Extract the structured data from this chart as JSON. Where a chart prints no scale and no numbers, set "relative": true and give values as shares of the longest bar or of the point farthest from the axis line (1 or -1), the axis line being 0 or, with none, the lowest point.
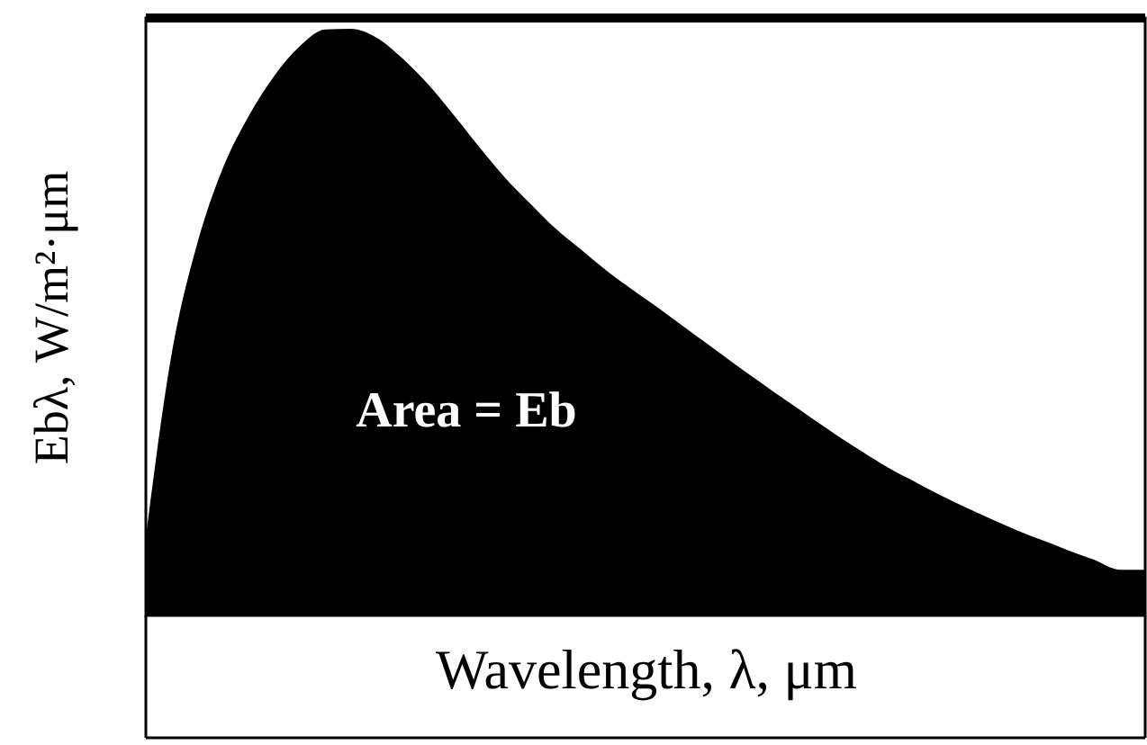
{
  "chart_data": {
    "type": "area",
    "relative": true,
    "xlabel": "Wavelength, λ, μm",
    "ylabel": "Ebλ, W/m²·μm",
    "annotations": [
      "Area = Eb"
    ],
    "categories": [
      null,
      null,
      null,
      null,
      null,
      null,
      null,
      null,
      null,
      null,
      null,
      null,
      null,
      null,
      null,
      null,
      null,
      null,
      null,
      null,
      null,
      null,
      null,
      null,
      null,
      null,
      null,
      null,
      null,
      null,
      null,
      null,
      null,
      null,
      null,
      null,
      null,
      null,
      null,
      null
    ],
    "values": [
      0.134,
      0.444,
      0.633,
      0.762,
      0.85,
      0.919,
      0.97,
      0.999,
      1.0,
      0.985,
      0.95,
      0.906,
      0.854,
      0.799,
      0.747,
      0.702,
      0.659,
      0.623,
      0.587,
      0.555,
      0.524,
      0.492,
      0.46,
      0.428,
      0.397,
      0.366,
      0.336,
      0.306,
      0.278,
      0.251,
      0.228,
      0.205,
      0.184,
      0.164,
      0.145,
      0.128,
      0.111,
      0.095,
      0.078,
      0.078
    ],
    "color": "#000000"
  }
}
